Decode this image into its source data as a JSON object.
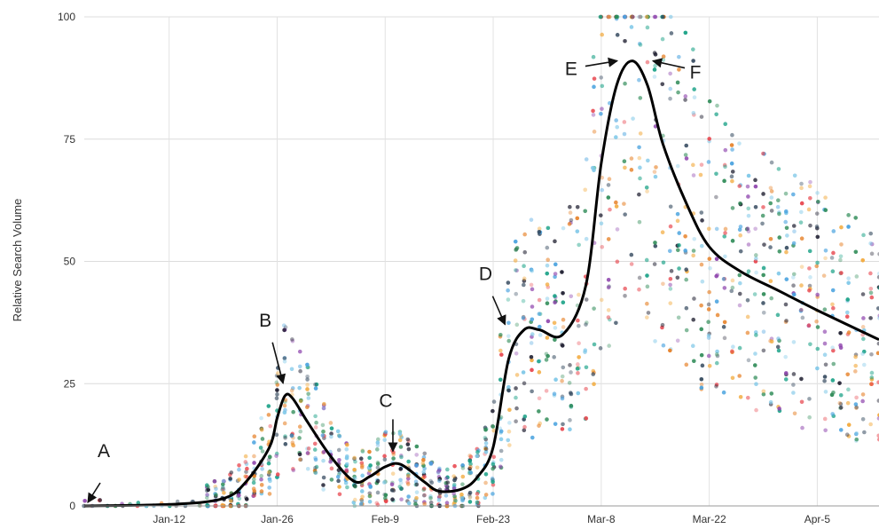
{
  "chart_data": {
    "type": "scatter",
    "title": "",
    "xlabel": "",
    "ylabel": "Relative Search Volume",
    "x_type": "date",
    "x_range": [
      "2020-01-01",
      "2020-04-13"
    ],
    "ylim": [
      0,
      100
    ],
    "yticks": [
      0,
      25,
      50,
      75,
      100
    ],
    "xticks": [
      {
        "date": "2020-01-12",
        "label": "Jan-12"
      },
      {
        "date": "2020-01-26",
        "label": "Jan-26"
      },
      {
        "date": "2020-02-09",
        "label": "Feb-9"
      },
      {
        "date": "2020-02-23",
        "label": "Feb-23"
      },
      {
        "date": "2020-03-08",
        "label": "Mar-8"
      },
      {
        "date": "2020-03-22",
        "label": "Mar-22"
      },
      {
        "date": "2020-04-05",
        "label": "Apr-5"
      }
    ],
    "grid": true,
    "legend": "none",
    "point_colors": [
      "#1c1c2e",
      "#e8474f",
      "#2e8b57",
      "#4aa3df",
      "#f2a93b",
      "#8e44ad",
      "#16a085",
      "#34495e",
      "#e67e22",
      "#7fc8e8"
    ],
    "line_color": "#000000",
    "trend_line": [
      {
        "x": "2020-01-01",
        "y": 0
      },
      {
        "x": "2020-01-12",
        "y": 0.3
      },
      {
        "x": "2020-01-19",
        "y": 1.5
      },
      {
        "x": "2020-01-22",
        "y": 5
      },
      {
        "x": "2020-01-25",
        "y": 12
      },
      {
        "x": "2020-01-26",
        "y": 18
      },
      {
        "x": "2020-01-27",
        "y": 22.5
      },
      {
        "x": "2020-01-28",
        "y": 22
      },
      {
        "x": "2020-01-30",
        "y": 17
      },
      {
        "x": "2020-02-02",
        "y": 10
      },
      {
        "x": "2020-02-05",
        "y": 5
      },
      {
        "x": "2020-02-07",
        "y": 6
      },
      {
        "x": "2020-02-09",
        "y": 8
      },
      {
        "x": "2020-02-11",
        "y": 8.5
      },
      {
        "x": "2020-02-14",
        "y": 5
      },
      {
        "x": "2020-02-16",
        "y": 3
      },
      {
        "x": "2020-02-19",
        "y": 3.5
      },
      {
        "x": "2020-02-21",
        "y": 6
      },
      {
        "x": "2020-02-23",
        "y": 12
      },
      {
        "x": "2020-02-25",
        "y": 30
      },
      {
        "x": "2020-02-27",
        "y": 36
      },
      {
        "x": "2020-02-29",
        "y": 36
      },
      {
        "x": "2020-03-03",
        "y": 35
      },
      {
        "x": "2020-03-06",
        "y": 45
      },
      {
        "x": "2020-03-08",
        "y": 70
      },
      {
        "x": "2020-03-10",
        "y": 86
      },
      {
        "x": "2020-03-12",
        "y": 91
      },
      {
        "x": "2020-03-14",
        "y": 86
      },
      {
        "x": "2020-03-16",
        "y": 74
      },
      {
        "x": "2020-03-19",
        "y": 62
      },
      {
        "x": "2020-03-22",
        "y": 53
      },
      {
        "x": "2020-03-26",
        "y": 48
      },
      {
        "x": "2020-03-31",
        "y": 44
      },
      {
        "x": "2020-04-05",
        "y": 40
      },
      {
        "x": "2020-04-13",
        "y": 34
      }
    ],
    "annotations": [
      {
        "label": "A",
        "x": "2020-01-01",
        "y": 0
      },
      {
        "label": "B",
        "x": "2020-01-27",
        "y": 24
      },
      {
        "label": "C",
        "x": "2020-02-10",
        "y": 9
      },
      {
        "label": "D",
        "x": "2020-02-25",
        "y": 36
      },
      {
        "label": "E",
        "x": "2020-03-11",
        "y": 91
      },
      {
        "label": "F",
        "x": "2020-03-14",
        "y": 91
      }
    ]
  }
}
